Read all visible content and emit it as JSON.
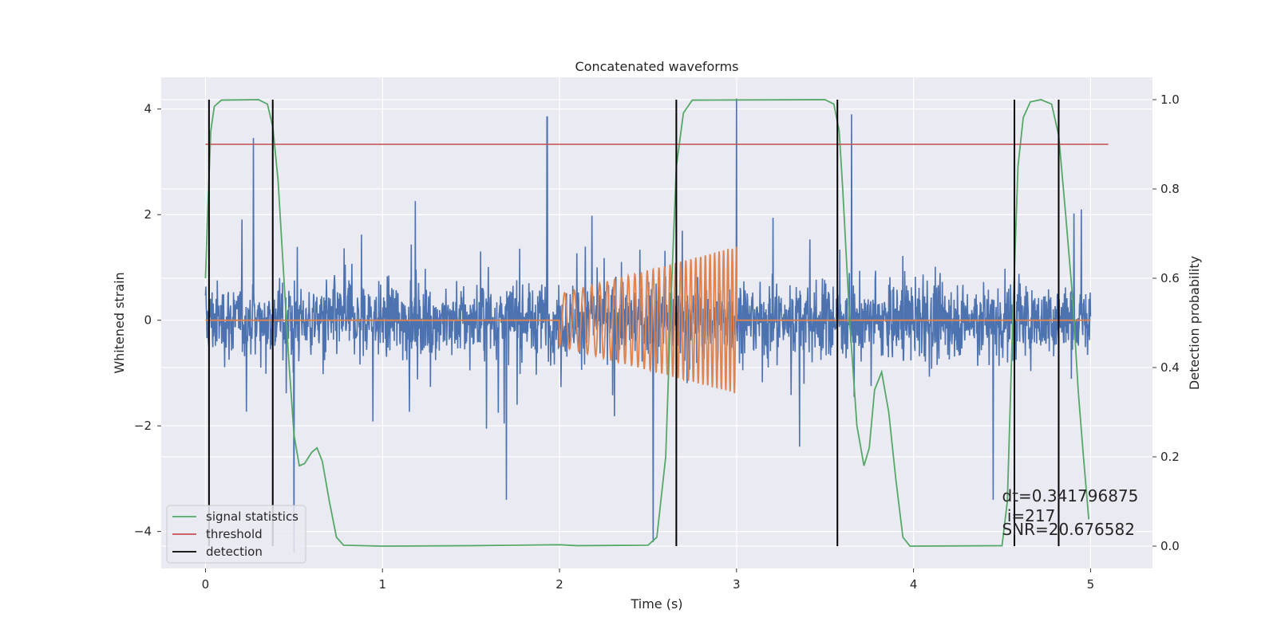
{
  "chart_data": {
    "type": "line",
    "title": "Concatenated waveforms",
    "xlabel": "Time (s)",
    "ylabel": "Whitened strain",
    "y2label": "Detection probability",
    "xlim": [
      -0.25,
      5.35
    ],
    "ylim": [
      -4.7,
      4.6
    ],
    "y2lim": [
      -0.05,
      1.05
    ],
    "x_ticks": [
      0,
      1,
      2,
      3,
      4,
      5
    ],
    "x_tick_labels": [
      "0",
      "1",
      "2",
      "3",
      "4",
      "5"
    ],
    "y_ticks": [
      -4,
      -2,
      0,
      2,
      4
    ],
    "y_tick_labels": [
      "−4",
      "−2",
      "0",
      "2",
      "4"
    ],
    "y2_ticks": [
      0.0,
      0.2,
      0.4,
      0.6,
      0.8,
      1.0
    ],
    "y2_tick_labels": [
      "0.0",
      "0.2",
      "0.4",
      "0.6",
      "0.8",
      "1.0"
    ],
    "grid": true,
    "legend_position": "bottom-left",
    "colors": {
      "strain": "#4c72b0",
      "template": "#dd8452",
      "signal_statistics": "#55a868",
      "threshold": "#c44e52",
      "detection": "#000000",
      "plot_background": "#eaeaf2",
      "grid": "#ffffff"
    },
    "series": [
      {
        "name": "",
        "axis": "left",
        "kind": "noise",
        "x_range": [
          0,
          5
        ],
        "core_amplitude": 0.9,
        "peak_amplitude": 3.5,
        "notable_peaks": [
          [
            0.27,
            3.45
          ],
          [
            1.93,
            3.85
          ],
          [
            3.0,
            4.2
          ],
          [
            3.65,
            3.9
          ],
          [
            0.5,
            -4.4
          ],
          [
            2.53,
            -4.2
          ],
          [
            1.7,
            -3.4
          ],
          [
            4.45,
            -3.4
          ]
        ]
      },
      {
        "name": "",
        "axis": "left",
        "kind": "chirp",
        "x_range": [
          0,
          5
        ],
        "chirp_start": 2.0,
        "chirp_end": 3.0,
        "start_amplitude": 0.55,
        "end_amplitude": 1.55,
        "start_frequency_hz": 17,
        "end_frequency_hz": 42
      },
      {
        "name": "signal statistics",
        "axis": "right",
        "points": [
          [
            0.0,
            0.6
          ],
          [
            0.01,
            0.72
          ],
          [
            0.03,
            0.93
          ],
          [
            0.05,
            0.985
          ],
          [
            0.09,
            0.999
          ],
          [
            0.3,
            1.0
          ],
          [
            0.35,
            0.99
          ],
          [
            0.38,
            0.94
          ],
          [
            0.41,
            0.82
          ],
          [
            0.44,
            0.62
          ],
          [
            0.47,
            0.42
          ],
          [
            0.5,
            0.25
          ],
          [
            0.53,
            0.18
          ],
          [
            0.56,
            0.185
          ],
          [
            0.6,
            0.21
          ],
          [
            0.63,
            0.22
          ],
          [
            0.66,
            0.19
          ],
          [
            0.7,
            0.1
          ],
          [
            0.74,
            0.02
          ],
          [
            0.78,
            0.002
          ],
          [
            1.0,
            0.0
          ],
          [
            1.5,
            0.001
          ],
          [
            2.0,
            0.003
          ],
          [
            2.1,
            0.001
          ],
          [
            2.5,
            0.002
          ],
          [
            2.55,
            0.02
          ],
          [
            2.6,
            0.2
          ],
          [
            2.63,
            0.55
          ],
          [
            2.66,
            0.85
          ],
          [
            2.7,
            0.97
          ],
          [
            2.75,
            0.999
          ],
          [
            3.5,
            1.0
          ],
          [
            3.55,
            0.99
          ],
          [
            3.58,
            0.93
          ],
          [
            3.6,
            0.8
          ],
          [
            3.64,
            0.5
          ],
          [
            3.68,
            0.27
          ],
          [
            3.72,
            0.18
          ],
          [
            3.75,
            0.22
          ],
          [
            3.78,
            0.35
          ],
          [
            3.82,
            0.39
          ],
          [
            3.86,
            0.3
          ],
          [
            3.9,
            0.15
          ],
          [
            3.94,
            0.02
          ],
          [
            3.98,
            0.0
          ],
          [
            4.5,
            0.001
          ],
          [
            4.53,
            0.1
          ],
          [
            4.56,
            0.5
          ],
          [
            4.59,
            0.85
          ],
          [
            4.62,
            0.96
          ],
          [
            4.66,
            0.995
          ],
          [
            4.72,
            1.0
          ],
          [
            4.78,
            0.99
          ],
          [
            4.82,
            0.92
          ],
          [
            4.86,
            0.74
          ],
          [
            4.9,
            0.55
          ],
          [
            4.93,
            0.35
          ],
          [
            4.96,
            0.2
          ],
          [
            4.99,
            0.06
          ]
        ]
      },
      {
        "name": "threshold",
        "axis": "right",
        "points": [
          [
            0.0,
            0.9
          ],
          [
            5.1,
            0.9
          ]
        ]
      }
    ],
    "detections": {
      "name": "detection",
      "x": [
        0.02,
        0.38,
        2.66,
        3.57,
        4.57,
        4.82
      ],
      "y2_range": [
        0.0,
        1.0
      ]
    },
    "annotations": [
      {
        "text": "dt=0.341796875",
        "x": 4.5,
        "y2": 0.1
      },
      {
        "text": " i=217",
        "x": 4.5,
        "y2": 0.055
      },
      {
        "text": "SNR=20.676582",
        "x": 4.5,
        "y2": 0.025
      }
    ]
  }
}
